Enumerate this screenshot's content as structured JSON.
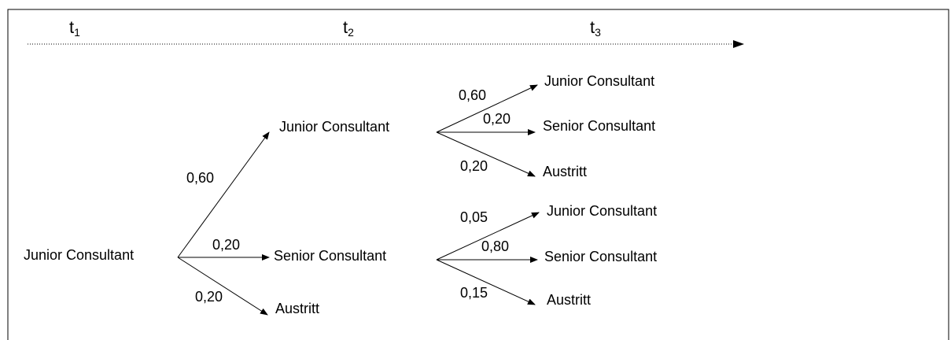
{
  "timeline": [
    {
      "base": "t",
      "sub": "1"
    },
    {
      "base": "t",
      "sub": "2"
    },
    {
      "base": "t",
      "sub": "3"
    }
  ],
  "nodes": [
    {
      "label": "Junior Consultant"
    },
    {
      "label": "Junior Consultant"
    },
    {
      "label": "Senior Consultant"
    },
    {
      "label": "Austritt"
    },
    {
      "label": "Junior Consultant"
    },
    {
      "label": "Senior Consultant"
    },
    {
      "label": "Austritt"
    },
    {
      "label": "Junior Consultant"
    },
    {
      "label": "Senior Consultant"
    },
    {
      "label": "Austritt"
    }
  ],
  "edges": [
    {
      "from": 0,
      "to": 1,
      "label": "0,60"
    },
    {
      "from": 0,
      "to": 2,
      "label": "0,20"
    },
    {
      "from": 0,
      "to": 3,
      "label": "0,20"
    },
    {
      "from": 1,
      "to": 4,
      "label": "0,60"
    },
    {
      "from": 1,
      "to": 5,
      "label": "0,20"
    },
    {
      "from": 1,
      "to": 6,
      "label": "0,20"
    },
    {
      "from": 2,
      "to": 7,
      "label": "0,05"
    },
    {
      "from": 2,
      "to": 8,
      "label": "0,80"
    },
    {
      "from": 2,
      "to": 9,
      "label": "0,15"
    }
  ]
}
